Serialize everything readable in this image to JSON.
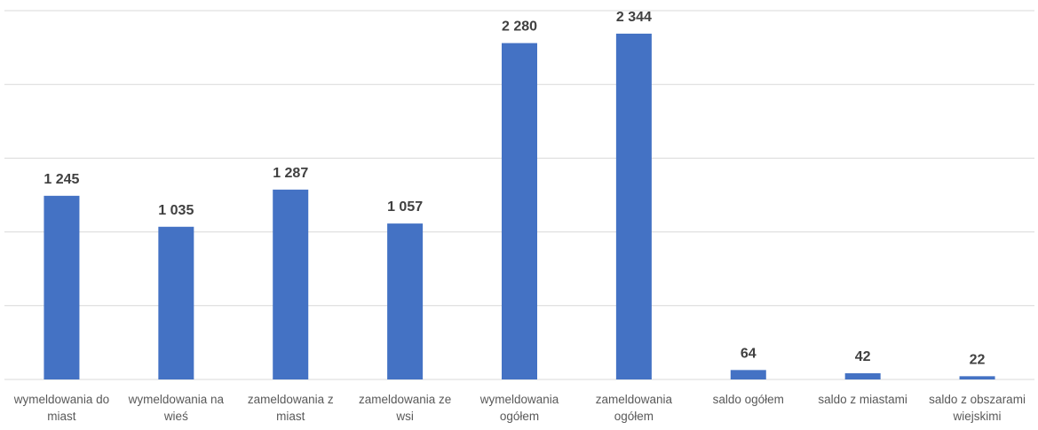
{
  "chart_data": {
    "type": "bar",
    "categories": [
      "wymeldowania do miast",
      "wymeldowania na wieś",
      "zameldowania z miast",
      "zameldowania ze wsi",
      "wymeldowania ogółem",
      "zameldowania ogółem",
      "saldo ogółem",
      "saldo z miastami",
      "saldo z obszarami wiejskimi"
    ],
    "values": [
      1245,
      1035,
      1287,
      1057,
      2280,
      2344,
      64,
      42,
      22
    ],
    "value_labels": [
      "1 245",
      "1 035",
      "1 287",
      "1 057",
      "2 280",
      "2 344",
      "64",
      "42",
      "22"
    ],
    "color": "#4472c4",
    "ylim": [
      0,
      2500
    ],
    "yticks": [
      0,
      500,
      1000,
      1500,
      2000,
      2500
    ],
    "grid": true
  }
}
